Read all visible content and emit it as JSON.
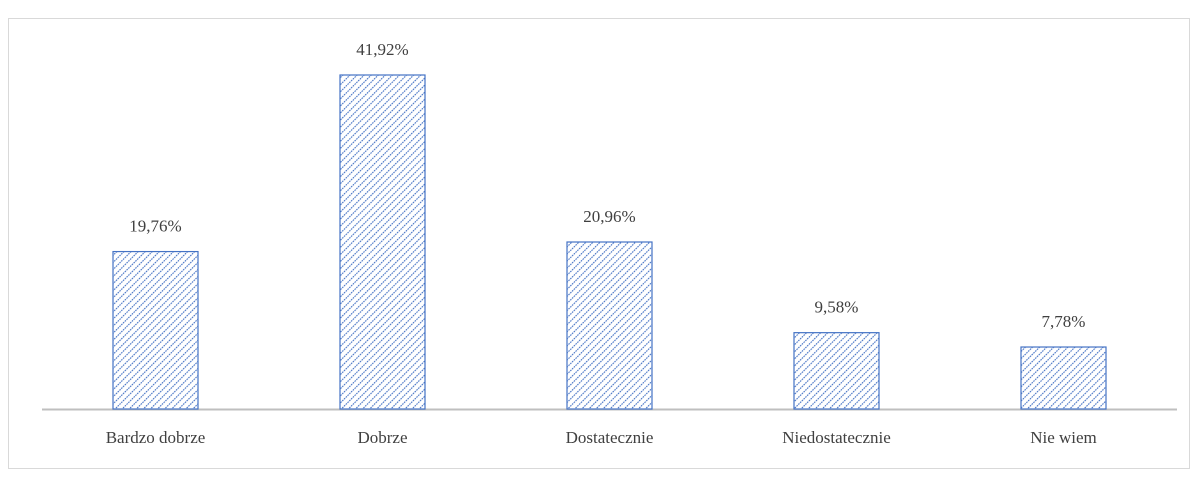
{
  "chart_data": {
    "type": "bar",
    "categories": [
      "Bardzo dobrze",
      "Dobrze",
      "Dostatecznie",
      "Niedostatecznie",
      "Nie wiem"
    ],
    "values": [
      19.76,
      41.92,
      20.96,
      9.58,
      7.78
    ],
    "value_labels": [
      "19,76%",
      "41,92%",
      "20,96%",
      "9,58%",
      "7,78%"
    ],
    "color": "#4472c4"
  }
}
